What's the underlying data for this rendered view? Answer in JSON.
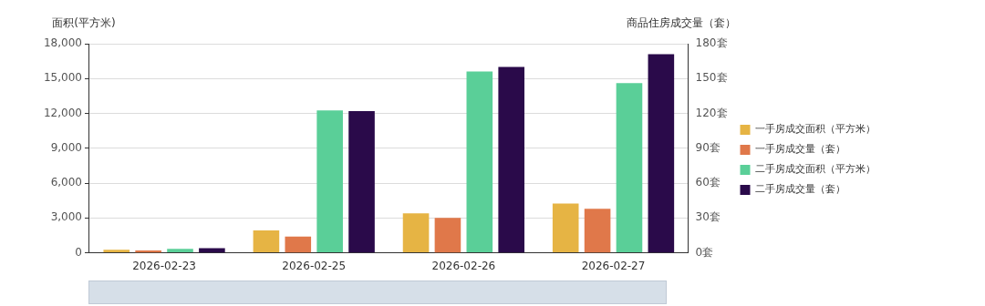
{
  "chart_data": {
    "type": "bar",
    "ylabel": "面积(平方米)",
    "y2label": "商品住房成交量（套）",
    "categories": [
      "2026-02-23",
      "2026-02-25",
      "2026-02-26",
      "2026-02-27"
    ],
    "series": [
      {
        "name": "一手房成交面积（平方米）",
        "color": "#e6b444",
        "values": [
          270,
          1920,
          3400,
          4250
        ]
      },
      {
        "name": "一手房成交量（套）",
        "color": "#e0784a",
        "axis": "y2",
        "values": [
          2,
          14,
          30,
          38
        ]
      },
      {
        "name": "二手房成交面积（平方米）",
        "color": "#5acf98",
        "values": [
          350,
          12250,
          15600,
          14600
        ]
      },
      {
        "name": "二手房成交量（套）",
        "color": "#2a0a4a",
        "axis": "y2",
        "values": [
          4,
          122,
          160,
          171
        ]
      }
    ],
    "ylim": [
      0,
      18000
    ],
    "yticks": [
      {
        "value": 0,
        "label": "0"
      },
      {
        "value": 3000,
        "label": "3,000"
      },
      {
        "value": 6000,
        "label": "6,000"
      },
      {
        "value": 9000,
        "label": "9,000"
      },
      {
        "value": 12000,
        "label": "12,000"
      },
      {
        "value": 15000,
        "label": "15,000"
      },
      {
        "value": 18000,
        "label": "18,000"
      }
    ],
    "y2lim": [
      0,
      180
    ],
    "y2ticks": [
      {
        "value": 0,
        "label": "0套"
      },
      {
        "value": 30,
        "label": "30套"
      },
      {
        "value": 60,
        "label": "60套"
      },
      {
        "value": 90,
        "label": "90套"
      },
      {
        "value": 120,
        "label": "120套"
      },
      {
        "value": 150,
        "label": "150套"
      },
      {
        "value": 180,
        "label": "180套"
      }
    ],
    "grid": "y",
    "legend": "right"
  }
}
